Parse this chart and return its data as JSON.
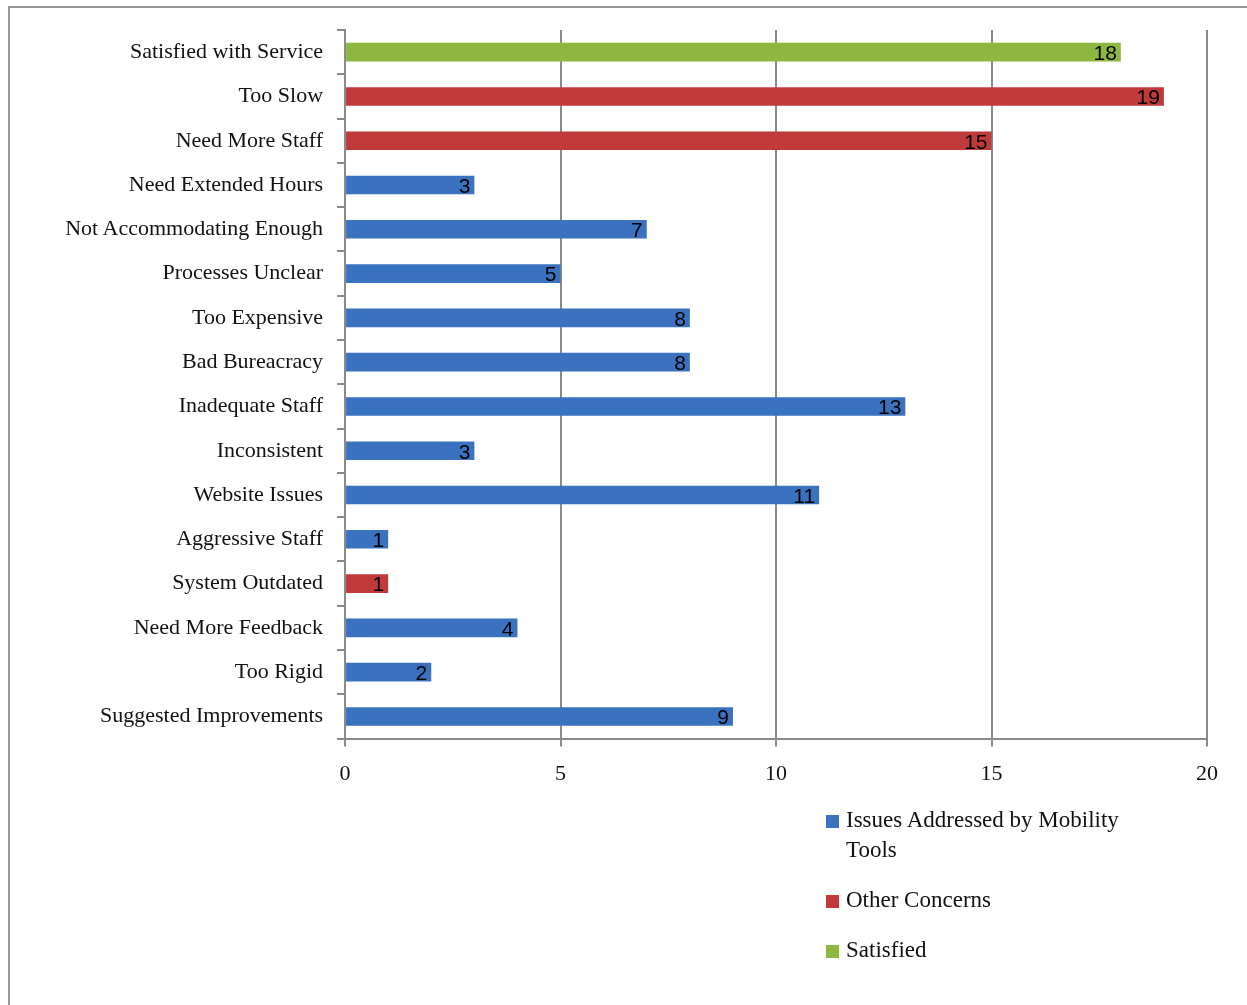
{
  "chart_data": {
    "type": "bar",
    "orientation": "horizontal",
    "stacked": true,
    "categories": [
      "Satisfied with Service",
      "Too Slow",
      "Need More Staff",
      "Need Extended Hours",
      "Not Accommodating Enough",
      "Processes Unclear",
      "Too Expensive",
      "Bad Bureacracy",
      "Inadequate Staff",
      "Inconsistent",
      "Website Issues",
      "Aggressive Staff",
      "System Outdated",
      "Need More Feedback",
      "Too Rigid",
      "Suggested Improvements"
    ],
    "series": [
      {
        "name": "Issues Addressed by Mobility Tools",
        "color": "#3a72c0",
        "values": [
          null,
          null,
          null,
          3,
          7,
          5,
          8,
          8,
          13,
          3,
          11,
          1,
          null,
          4,
          2,
          9
        ]
      },
      {
        "name": "Other Concerns",
        "color": "#c0393b",
        "values": [
          null,
          19,
          15,
          null,
          null,
          null,
          null,
          null,
          null,
          null,
          null,
          null,
          1,
          null,
          null,
          null
        ]
      },
      {
        "name": "Satisfied",
        "color": "#8db83f",
        "values": [
          18,
          null,
          null,
          null,
          null,
          null,
          null,
          null,
          null,
          null,
          null,
          null,
          null,
          null,
          null,
          null
        ]
      }
    ],
    "xlim": [
      0,
      20
    ],
    "xticks": [
      0,
      5,
      10,
      15,
      20
    ],
    "grid": "x",
    "legend": "bottom right",
    "data_labels": true
  }
}
